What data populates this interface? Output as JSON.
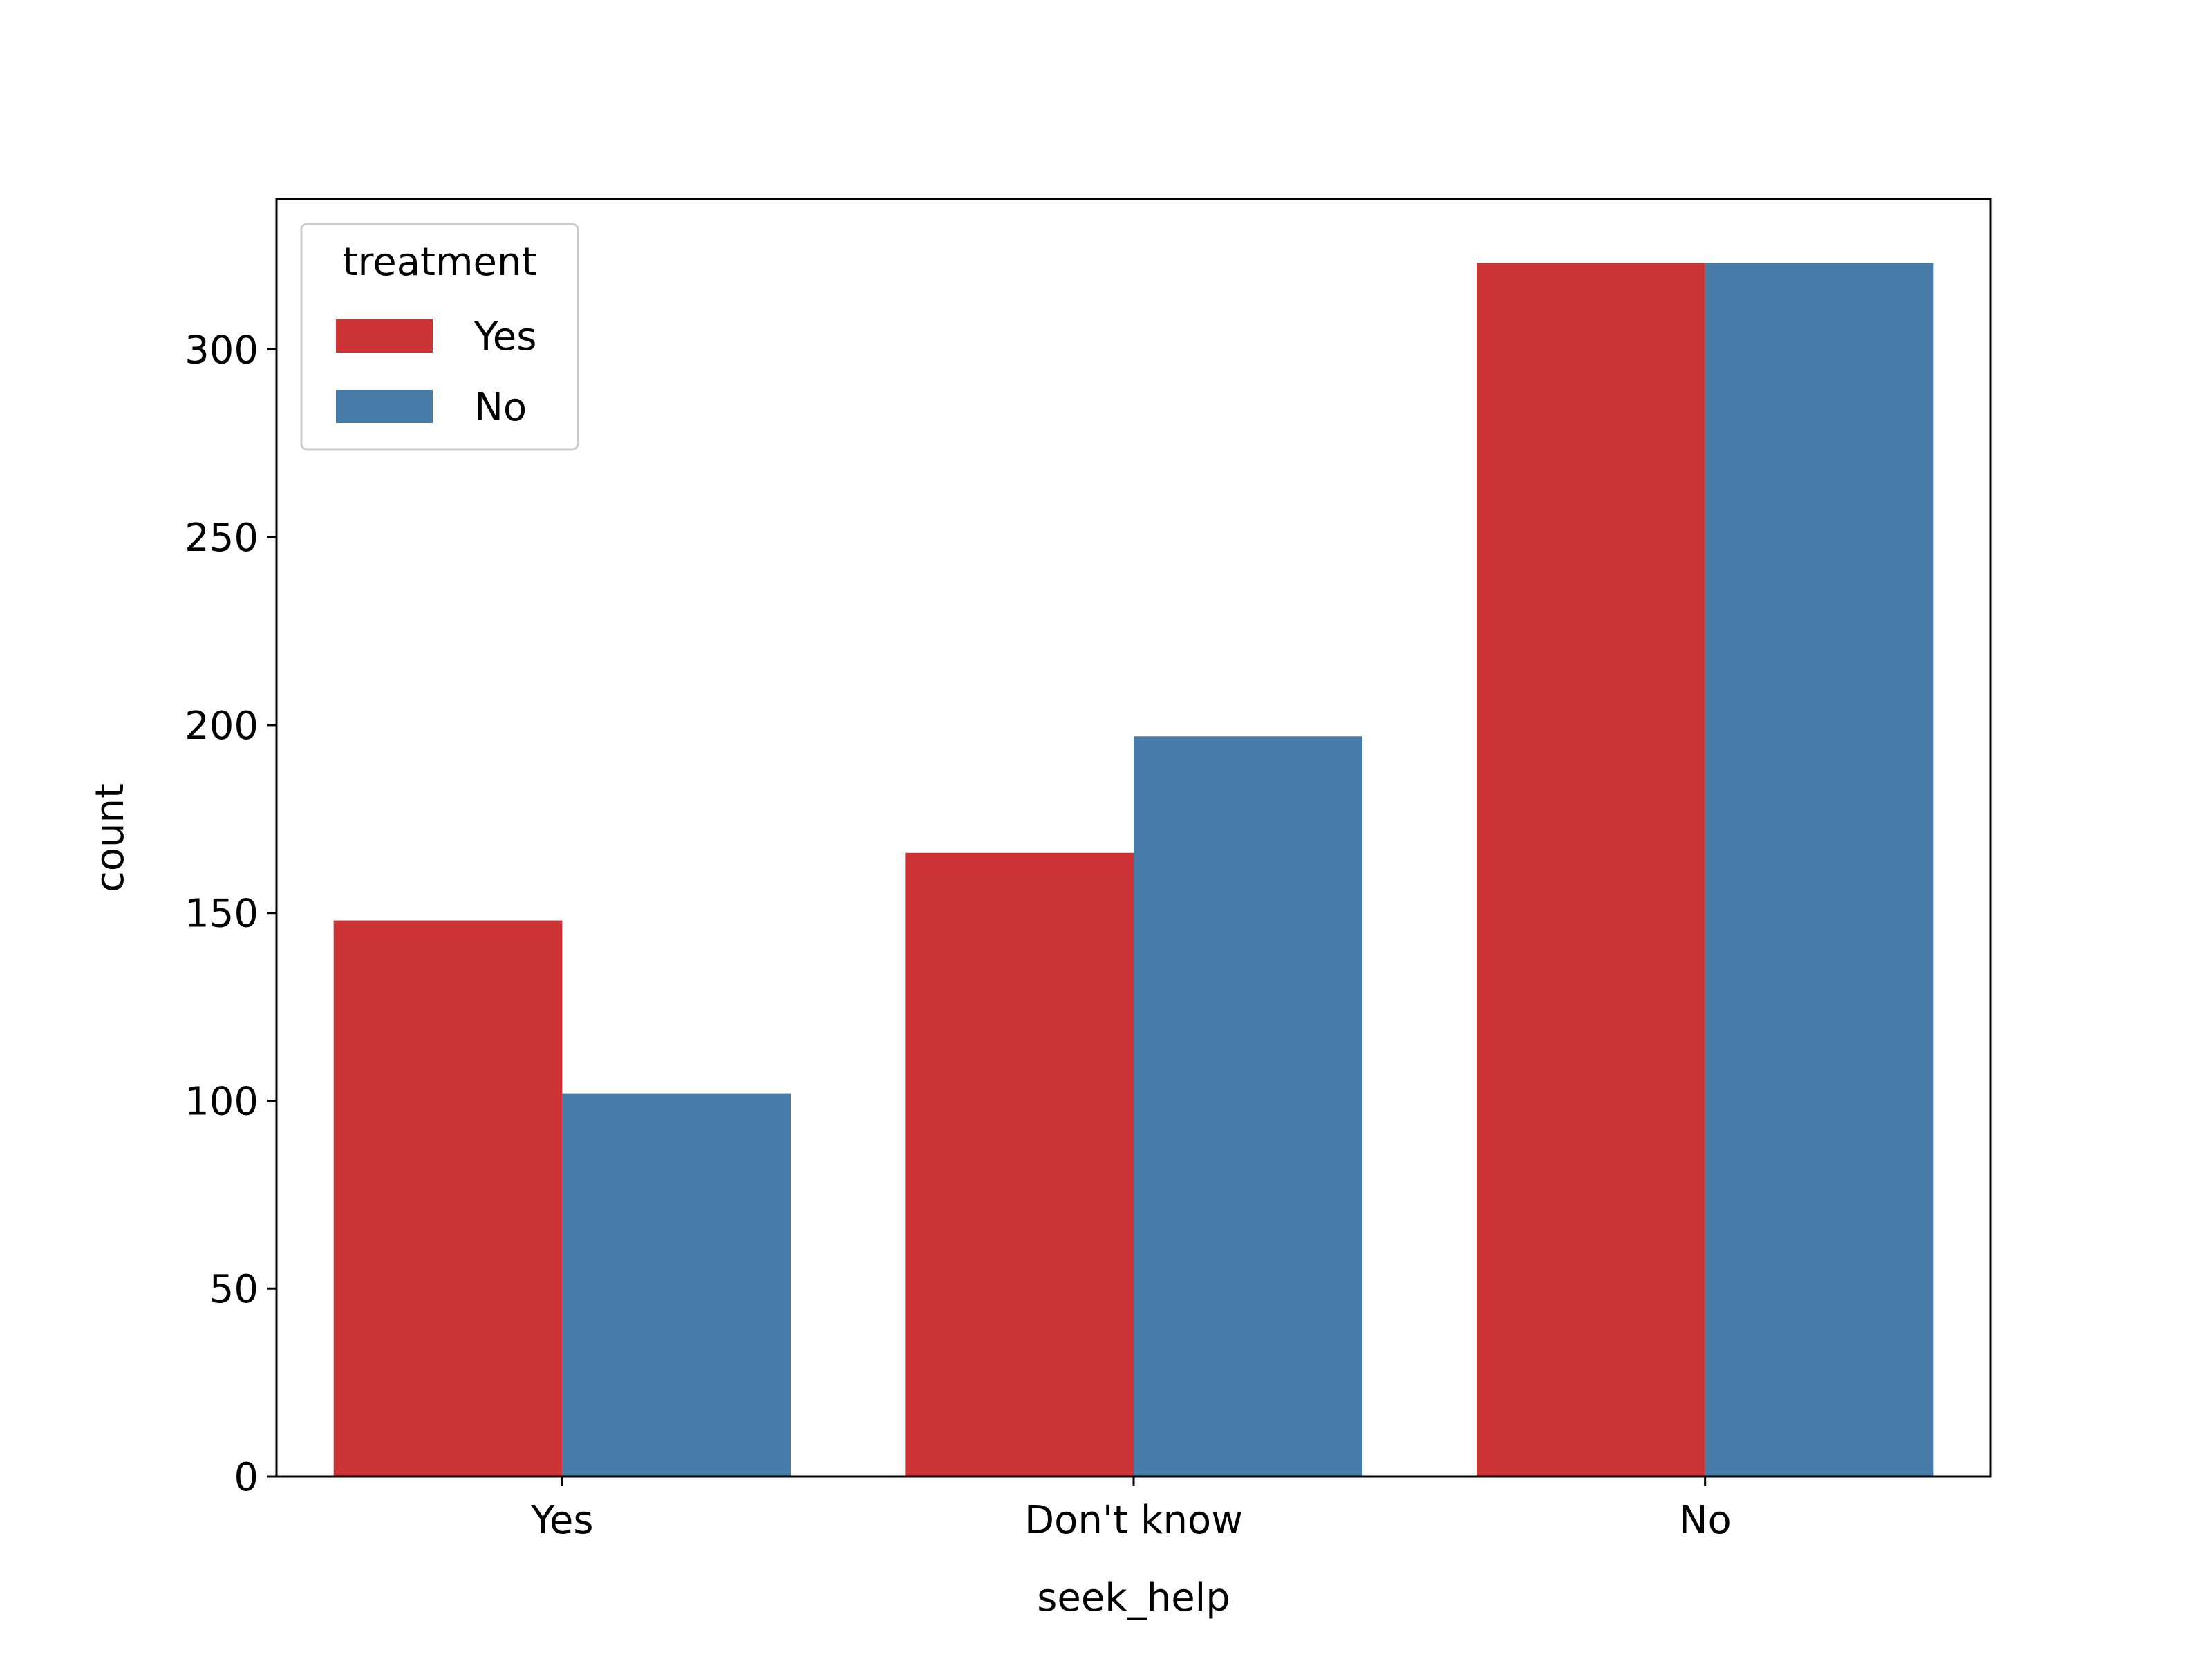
{
  "chart_data": {
    "type": "bar",
    "xlabel": "seek_help",
    "ylabel": "count",
    "categories": [
      "Yes",
      "Don't know",
      "No"
    ],
    "series": [
      {
        "name": "Yes",
        "color": "#cb3335",
        "values": [
          148,
          166,
          323
        ]
      },
      {
        "name": "No",
        "color": "#477ca8",
        "values": [
          102,
          197,
          323
        ]
      }
    ],
    "ylim": [
      0,
      340
    ],
    "yticks": [
      0,
      50,
      100,
      150,
      200,
      250,
      300
    ],
    "legend": {
      "title": "treatment",
      "position": "top-left"
    },
    "grid": false
  }
}
